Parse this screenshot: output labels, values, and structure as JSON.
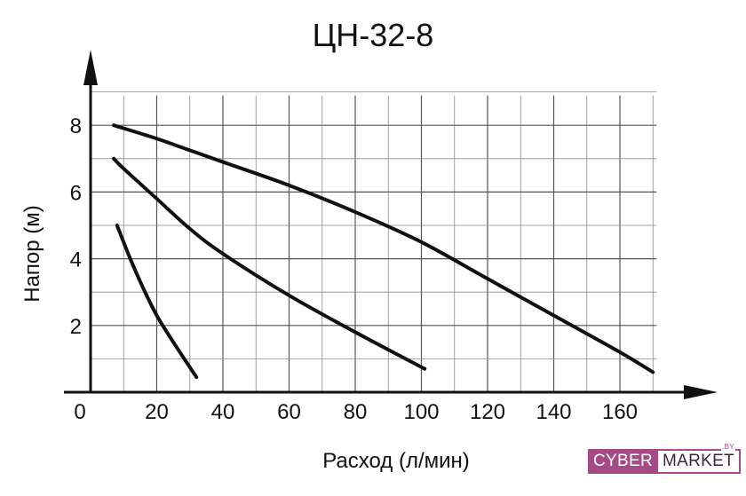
{
  "chart_data": {
    "type": "line",
    "title": "ЦН-32-8",
    "xlabel": "Расход (л/мин)",
    "ylabel": "Напор (м)",
    "xlim": [
      0,
      170
    ],
    "ylim": [
      0,
      9
    ],
    "x_ticks": [
      "0",
      "20",
      "40",
      "60",
      "80",
      "100",
      "120",
      "140",
      "160"
    ],
    "y_ticks": [
      "2",
      "4",
      "6",
      "8"
    ],
    "grid": true,
    "grid_step_x": 10,
    "grid_step_y": 1,
    "line_color": "#111111",
    "series": [
      {
        "x": [
          7,
          20,
          30,
          40,
          60,
          80,
          100,
          120,
          140,
          160,
          170
        ],
        "y": [
          8.0,
          7.6,
          7.25,
          6.9,
          6.2,
          5.4,
          4.5,
          3.4,
          2.3,
          1.2,
          0.6
        ]
      },
      {
        "x": [
          7,
          10,
          20,
          30,
          40,
          60,
          80,
          101
        ],
        "y": [
          7.0,
          6.7,
          5.8,
          4.9,
          4.15,
          2.9,
          1.8,
          0.7
        ]
      },
      {
        "x": [
          8,
          12,
          16,
          20,
          25,
          32
        ],
        "y": [
          5.0,
          4.0,
          3.1,
          2.3,
          1.5,
          0.45
        ]
      }
    ]
  },
  "logo": {
    "left_text": "CYBER",
    "right_text": "MARKET",
    "suffix": ".BY",
    "color": "#a54a86"
  }
}
